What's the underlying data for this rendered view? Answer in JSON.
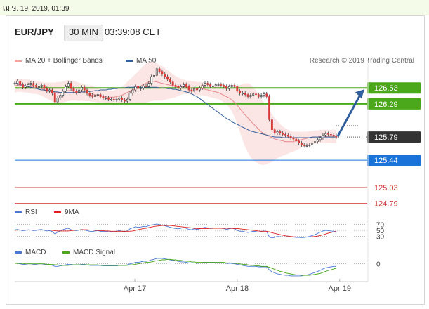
{
  "top_bar": {
    "text": "เม.ษ. 19, 2019, 01:39"
  },
  "header": {
    "pair": "EUR/JPY",
    "timeframe": "30 MIN",
    "time": "03:39:08 CET"
  },
  "legend": {
    "ma20_bb": {
      "label": "MA 20 + Bollinger Bands",
      "color": "#f4a0a0"
    },
    "ma50": {
      "label": "MA 50",
      "color": "#335f9a"
    },
    "rsi": {
      "label": "RSI",
      "color": "#4a78d4"
    },
    "rsi_ma": {
      "label": "9MA",
      "color": "#e02020"
    },
    "macd": {
      "label": "MACD",
      "color": "#4a78d4"
    },
    "macd_signal": {
      "label": "MACD Signal",
      "color": "#4aa81a"
    }
  },
  "credit": "Research © 2019 Trading Central",
  "chart_data": [
    {
      "type": "candlestick",
      "y_range": [
        124.7,
        126.85
      ],
      "levels": [
        {
          "value": 126.53,
          "label": "126.53",
          "kind": "resistance",
          "color": "#4aa81a"
        },
        {
          "value": 126.29,
          "label": "126.29",
          "kind": "resistance",
          "color": "#4aa81a"
        },
        {
          "value": 125.79,
          "label": "125.79",
          "kind": "current",
          "color": "#333333"
        },
        {
          "value": 125.44,
          "label": "125.44",
          "kind": "support",
          "color": "#1a73d9"
        },
        {
          "value": 125.03,
          "label": "125.03",
          "kind": "support",
          "color": "#e06060"
        },
        {
          "value": 124.79,
          "label": "124.79",
          "kind": "support",
          "color": "#e06060"
        }
      ],
      "x_labels": [
        "Apr 17",
        "Apr 18",
        "Apr 19"
      ],
      "x_label_positions": [
        0.34,
        0.63,
        0.92
      ],
      "close": [
        126.6,
        126.63,
        126.58,
        126.54,
        126.56,
        126.58,
        126.6,
        126.57,
        126.55,
        126.55,
        126.57,
        126.52,
        126.48,
        126.5,
        126.45,
        126.32,
        126.38,
        126.42,
        126.48,
        126.55,
        126.6,
        126.52,
        126.48,
        126.46,
        126.5,
        126.54,
        126.5,
        126.45,
        126.42,
        126.4,
        126.42,
        126.43,
        126.4,
        126.38,
        126.38,
        126.36,
        126.36,
        126.35,
        126.36,
        126.38,
        126.35,
        126.33,
        126.36,
        126.45,
        126.5,
        126.55,
        126.52,
        126.53,
        126.56,
        126.55,
        126.6,
        126.7,
        126.72,
        126.82,
        126.78,
        126.74,
        126.7,
        126.66,
        126.62,
        126.57,
        126.55,
        126.53,
        126.55,
        126.58,
        126.55,
        126.5,
        126.48,
        126.52,
        126.5,
        126.53,
        126.57,
        126.6,
        126.58,
        126.55,
        126.56,
        126.58,
        126.58,
        126.57,
        126.55,
        126.52,
        126.55,
        126.57,
        126.55,
        126.48,
        126.45,
        126.45,
        126.43,
        126.4,
        126.42,
        126.44,
        126.43,
        126.4,
        126.42,
        126.44,
        126.4,
        126.05,
        125.9,
        125.85,
        125.87,
        125.85,
        125.83,
        125.82,
        125.8,
        125.78,
        125.76,
        125.73,
        125.7,
        125.67,
        125.66,
        125.66,
        125.67,
        125.7,
        125.72,
        125.75,
        125.78,
        125.82,
        125.84,
        125.83,
        125.82,
        125.81,
        125.79
      ],
      "ma20": [
        126.56,
        126.57,
        126.57,
        126.57,
        126.56,
        126.56,
        126.55,
        126.54,
        126.54,
        126.53,
        126.52,
        126.5,
        126.49,
        126.48,
        126.47,
        126.46,
        126.46,
        126.46,
        126.47,
        126.48,
        126.49,
        126.49,
        126.49,
        126.48,
        126.47,
        126.47,
        126.46,
        126.45,
        126.45,
        126.44,
        126.43,
        126.42,
        126.41,
        126.41,
        126.4,
        126.39,
        126.39,
        126.39,
        126.4,
        126.41,
        126.42,
        126.44,
        126.46,
        126.48,
        126.5,
        126.52,
        126.54,
        126.56,
        126.58,
        126.6,
        126.62,
        126.63,
        126.63,
        126.62,
        126.61,
        126.6,
        126.59,
        126.58,
        126.57,
        126.56,
        126.55,
        126.55,
        126.55,
        126.55,
        126.54,
        126.54,
        126.53,
        126.53,
        126.52,
        126.52,
        126.52,
        126.51,
        126.5,
        126.49,
        126.48,
        126.47,
        126.46,
        126.44,
        126.42,
        126.4,
        126.38,
        126.35,
        126.31,
        126.27,
        126.22,
        126.17,
        126.12,
        126.08,
        126.03,
        125.99,
        125.95,
        125.91,
        125.87,
        125.84,
        125.82,
        125.8,
        125.78,
        125.76,
        125.75,
        125.74,
        125.73,
        125.72,
        125.72,
        125.72,
        125.72,
        125.73,
        125.74,
        125.75,
        125.76,
        125.77,
        125.78,
        125.78,
        125.79,
        125.79,
        125.8,
        125.8,
        125.8,
        125.8,
        125.8,
        125.8,
        125.8
      ],
      "ma50": [
        126.6,
        126.59,
        126.58,
        126.57,
        126.56,
        126.55,
        126.54,
        126.53,
        126.52,
        126.51,
        126.5,
        126.5,
        126.49,
        126.48,
        126.48,
        126.47,
        126.47,
        126.46,
        126.46,
        126.46,
        126.46,
        126.46,
        126.46,
        126.46,
        126.46,
        126.47,
        126.47,
        126.47,
        126.48,
        126.48,
        126.49,
        126.49,
        126.5,
        126.5,
        126.5,
        126.51,
        126.51,
        126.52,
        126.52,
        126.53,
        126.53,
        126.53,
        126.54,
        126.54,
        126.54,
        126.54,
        126.54,
        126.54,
        126.54,
        126.54,
        126.54,
        126.54,
        126.54,
        126.54,
        126.53,
        126.53,
        126.53,
        126.52,
        126.52,
        126.51,
        126.51,
        126.5,
        126.49,
        126.48,
        126.47,
        126.46,
        126.44,
        126.42,
        126.4,
        126.37,
        126.34,
        126.31,
        126.28,
        126.25,
        126.22,
        126.19,
        126.16,
        126.13,
        126.1,
        126.07,
        126.05,
        126.02,
        126.0,
        125.98,
        125.96,
        125.94,
        125.92,
        125.9,
        125.88,
        125.87,
        125.86,
        125.85,
        125.84,
        125.83,
        125.82,
        125.81,
        125.8,
        125.79,
        125.79,
        125.79,
        125.78,
        125.78,
        125.78,
        125.78,
        125.78,
        125.78,
        125.78,
        125.78,
        125.78,
        125.78,
        125.78,
        125.79,
        125.79,
        125.79,
        125.79,
        125.79,
        125.79,
        125.79,
        125.79,
        125.79,
        125.79
      ],
      "band_width": [
        0.1,
        0.1,
        0.1,
        0.1,
        0.1,
        0.1,
        0.1,
        0.1,
        0.1,
        0.1,
        0.1,
        0.11,
        0.12,
        0.13,
        0.14,
        0.15,
        0.16,
        0.16,
        0.16,
        0.16,
        0.16,
        0.15,
        0.15,
        0.14,
        0.14,
        0.13,
        0.13,
        0.12,
        0.12,
        0.12,
        0.11,
        0.11,
        0.1,
        0.1,
        0.1,
        0.1,
        0.1,
        0.1,
        0.11,
        0.12,
        0.13,
        0.14,
        0.16,
        0.18,
        0.2,
        0.22,
        0.24,
        0.26,
        0.28,
        0.3,
        0.3,
        0.3,
        0.29,
        0.28,
        0.27,
        0.26,
        0.24,
        0.22,
        0.2,
        0.18,
        0.16,
        0.14,
        0.12,
        0.11,
        0.1,
        0.1,
        0.1,
        0.1,
        0.1,
        0.1,
        0.1,
        0.1,
        0.1,
        0.1,
        0.1,
        0.1,
        0.1,
        0.1,
        0.11,
        0.12,
        0.14,
        0.17,
        0.22,
        0.28,
        0.35,
        0.42,
        0.48,
        0.52,
        0.55,
        0.55,
        0.54,
        0.52,
        0.5,
        0.47,
        0.44,
        0.4,
        0.36,
        0.32,
        0.28,
        0.25,
        0.22,
        0.2,
        0.18,
        0.16,
        0.15,
        0.14,
        0.13,
        0.12,
        0.11,
        0.1,
        0.1,
        0.1,
        0.1,
        0.1,
        0.1,
        0.1,
        0.1,
        0.1,
        0.1,
        0.1,
        0.1,
        0.1
      ]
    },
    {
      "type": "line",
      "name": "RSI",
      "y_ticks": [
        "70",
        "50",
        "30"
      ],
      "rsi": [
        52,
        53,
        51,
        49,
        50,
        52,
        51,
        49,
        50,
        52,
        53,
        50,
        48,
        49,
        46,
        38,
        44,
        48,
        52,
        55,
        57,
        52,
        50,
        49,
        51,
        53,
        51,
        49,
        47,
        46,
        48,
        49,
        47,
        46,
        47,
        45,
        46,
        45,
        47,
        49,
        47,
        45,
        48,
        55,
        58,
        62,
        60,
        61,
        63,
        62,
        65,
        68,
        69,
        71,
        69,
        67,
        65,
        63,
        60,
        58,
        56,
        55,
        57,
        59,
        57,
        53,
        52,
        55,
        53,
        55,
        58,
        60,
        58,
        56,
        57,
        58,
        58,
        57,
        56,
        53,
        55,
        57,
        55,
        50,
        47,
        47,
        45,
        43,
        45,
        47,
        46,
        44,
        46,
        48,
        46,
        28,
        25,
        27,
        30,
        29,
        28,
        28,
        29,
        28,
        28,
        27,
        27,
        26,
        27,
        28,
        30,
        33,
        36,
        40,
        44,
        48,
        50,
        49,
        48,
        47,
        46
      ],
      "rsi_ma": [
        50,
        51,
        51,
        51,
        51,
        51,
        51,
        51,
        51,
        51,
        51,
        51,
        51,
        51,
        50,
        49,
        48,
        48,
        48,
        48,
        48,
        49,
        50,
        51,
        51,
        52,
        52,
        52,
        51,
        51,
        50,
        50,
        49,
        49,
        48,
        48,
        47,
        47,
        47,
        47,
        47,
        47,
        47,
        47,
        48,
        50,
        52,
        54,
        56,
        57,
        59,
        61,
        63,
        64,
        65,
        66,
        66,
        66,
        66,
        65,
        64,
        63,
        62,
        61,
        60,
        59,
        58,
        57,
        56,
        56,
        56,
        56,
        56,
        57,
        57,
        57,
        57,
        57,
        57,
        57,
        57,
        57,
        56,
        56,
        55,
        54,
        53,
        52,
        51,
        50,
        49,
        48,
        47,
        47,
        47,
        45,
        42,
        40,
        38,
        36,
        34,
        32,
        31,
        30,
        29,
        28,
        28,
        28,
        28,
        28,
        28,
        29,
        30,
        31,
        33,
        35,
        38,
        41,
        43,
        45,
        46
      ]
    },
    {
      "type": "line",
      "name": "MACD",
      "y_ticks": [
        "0"
      ],
      "macd": [
        0.01,
        0.01,
        0.0,
        -0.01,
        -0.01,
        0.0,
        0.0,
        -0.01,
        -0.01,
        0.0,
        0.0,
        -0.01,
        -0.02,
        -0.02,
        -0.03,
        -0.05,
        -0.05,
        -0.04,
        -0.03,
        -0.02,
        -0.01,
        -0.01,
        -0.02,
        -0.02,
        -0.02,
        -0.01,
        -0.01,
        -0.02,
        -0.03,
        -0.03,
        -0.03,
        -0.03,
        -0.03,
        -0.04,
        -0.04,
        -0.04,
        -0.04,
        -0.04,
        -0.04,
        -0.03,
        -0.03,
        -0.03,
        -0.02,
        0.0,
        0.01,
        0.03,
        0.03,
        0.04,
        0.05,
        0.05,
        0.06,
        0.08,
        0.09,
        0.11,
        0.11,
        0.11,
        0.1,
        0.09,
        0.08,
        0.07,
        0.06,
        0.05,
        0.04,
        0.04,
        0.03,
        0.02,
        0.02,
        0.02,
        0.01,
        0.02,
        0.03,
        0.03,
        0.03,
        0.03,
        0.03,
        0.03,
        0.03,
        0.03,
        0.02,
        0.01,
        0.01,
        0.01,
        0.0,
        -0.01,
        -0.02,
        -0.03,
        -0.04,
        -0.05,
        -0.05,
        -0.05,
        -0.05,
        -0.06,
        -0.06,
        -0.06,
        -0.06,
        -0.12,
        -0.16,
        -0.18,
        -0.2,
        -0.21,
        -0.22,
        -0.23,
        -0.23,
        -0.24,
        -0.24,
        -0.24,
        -0.24,
        -0.24,
        -0.23,
        -0.22,
        -0.21,
        -0.19,
        -0.17,
        -0.15,
        -0.13,
        -0.1,
        -0.08,
        -0.07,
        -0.06,
        -0.05,
        -0.05
      ],
      "signal": [
        0.01,
        0.01,
        0.01,
        0.01,
        0.0,
        0.0,
        0.0,
        0.0,
        0.0,
        0.0,
        0.0,
        0.0,
        -0.01,
        -0.01,
        -0.01,
        -0.02,
        -0.02,
        -0.03,
        -0.03,
        -0.03,
        -0.03,
        -0.02,
        -0.02,
        -0.02,
        -0.02,
        -0.02,
        -0.02,
        -0.02,
        -0.02,
        -0.02,
        -0.02,
        -0.02,
        -0.03,
        -0.03,
        -0.03,
        -0.03,
        -0.03,
        -0.03,
        -0.03,
        -0.03,
        -0.03,
        -0.03,
        -0.03,
        -0.02,
        -0.02,
        -0.01,
        0.0,
        0.01,
        0.02,
        0.03,
        0.03,
        0.04,
        0.05,
        0.06,
        0.07,
        0.08,
        0.08,
        0.09,
        0.09,
        0.08,
        0.08,
        0.07,
        0.07,
        0.06,
        0.05,
        0.05,
        0.04,
        0.04,
        0.03,
        0.03,
        0.03,
        0.03,
        0.03,
        0.03,
        0.03,
        0.03,
        0.03,
        0.03,
        0.03,
        0.02,
        0.02,
        0.02,
        0.01,
        0.01,
        0.0,
        -0.01,
        -0.01,
        -0.02,
        -0.03,
        -0.03,
        -0.04,
        -0.04,
        -0.05,
        -0.05,
        -0.05,
        -0.07,
        -0.09,
        -0.11,
        -0.13,
        -0.15,
        -0.16,
        -0.18,
        -0.19,
        -0.2,
        -0.21,
        -0.22,
        -0.22,
        -0.23,
        -0.23,
        -0.23,
        -0.23,
        -0.22,
        -0.21,
        -0.2,
        -0.19,
        -0.17,
        -0.15,
        -0.13,
        -0.12,
        -0.1,
        -0.09
      ]
    }
  ]
}
